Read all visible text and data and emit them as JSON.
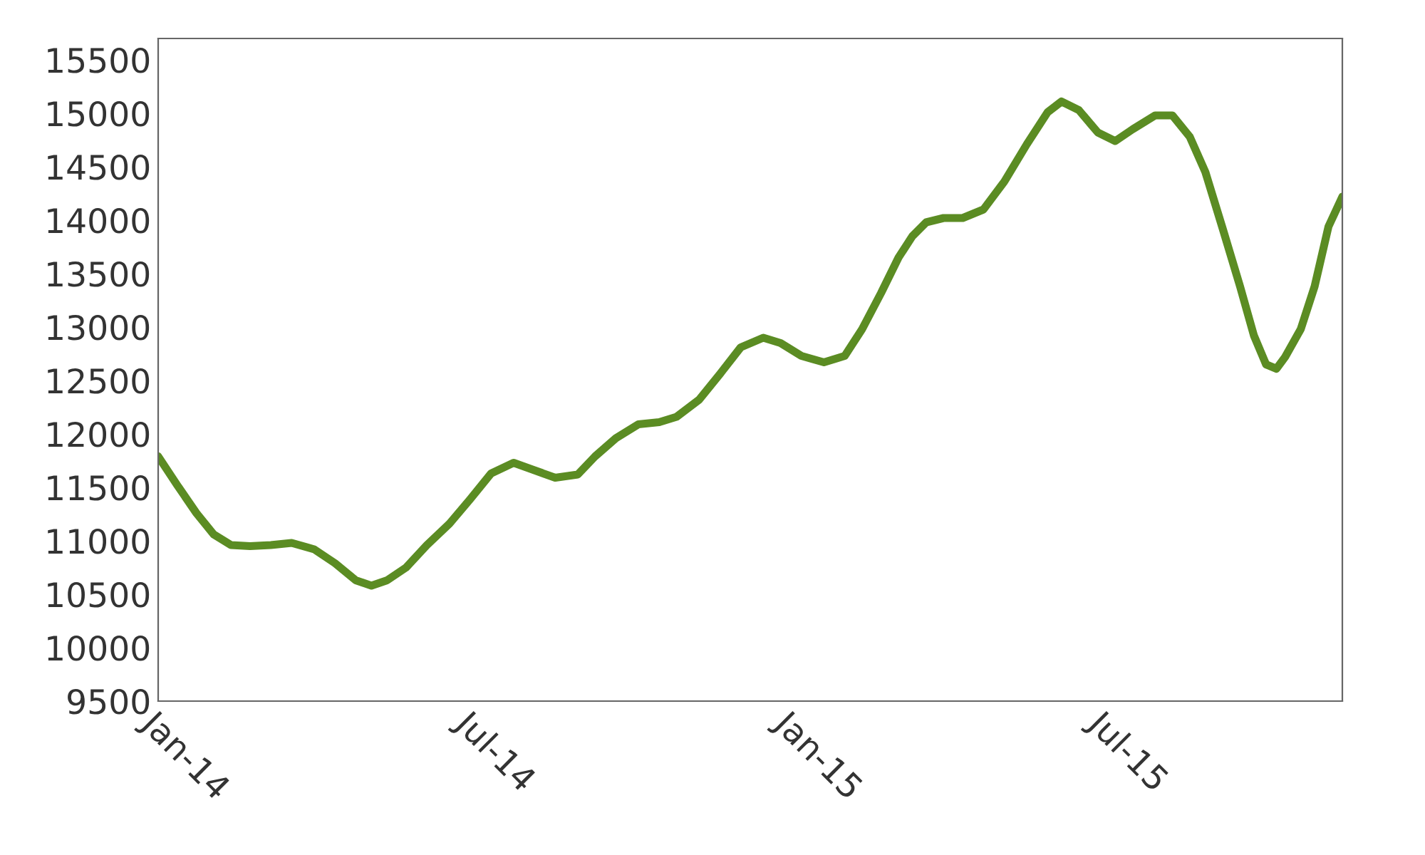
{
  "chart_data": {
    "type": "line",
    "x": [
      "2014-01-01",
      "2014-01-12",
      "2014-01-23",
      "2014-02-02",
      "2014-02-12",
      "2014-02-23",
      "2014-03-07",
      "2014-03-19",
      "2014-04-01",
      "2014-04-13",
      "2014-04-25",
      "2014-05-04",
      "2014-05-13",
      "2014-05-24",
      "2014-06-05",
      "2014-06-18",
      "2014-06-30",
      "2014-07-12",
      "2014-07-25",
      "2014-08-06",
      "2014-08-18",
      "2014-08-31",
      "2014-09-10",
      "2014-09-22",
      "2014-10-05",
      "2014-10-17",
      "2014-10-27",
      "2014-11-09",
      "2014-11-21",
      "2014-12-03",
      "2014-12-16",
      "2014-12-26",
      "2015-01-07",
      "2015-01-20",
      "2015-02-01",
      "2015-02-11",
      "2015-02-22",
      "2015-03-04",
      "2015-03-12",
      "2015-03-20",
      "2015-03-30",
      "2015-04-10",
      "2015-04-22",
      "2015-05-04",
      "2015-05-17",
      "2015-05-29",
      "2015-06-06",
      "2015-06-16",
      "2015-06-27",
      "2015-07-07",
      "2015-07-17",
      "2015-07-30",
      "2015-08-09",
      "2015-08-19",
      "2015-08-28",
      "2015-09-07",
      "2015-09-17",
      "2015-09-25",
      "2015-10-02",
      "2015-10-08",
      "2015-10-13",
      "2015-10-22",
      "2015-10-30",
      "2015-11-07",
      "2015-11-15"
    ],
    "series": [
      {
        "color": "#5b8c23",
        "values": [
          11790,
          11520,
          11260,
          11060,
          10960,
          10950,
          10960,
          10980,
          10920,
          10790,
          10630,
          10580,
          10630,
          10750,
          10960,
          11160,
          11390,
          11630,
          11730,
          11660,
          11590,
          11620,
          11790,
          11960,
          12090,
          12110,
          12160,
          12320,
          12560,
          12810,
          12900,
          12850,
          12730,
          12670,
          12730,
          12980,
          13320,
          13650,
          13850,
          13980,
          14020,
          14020,
          14100,
          14360,
          14710,
          15010,
          15110,
          15030,
          14820,
          14740,
          14850,
          14980,
          14980,
          14780,
          14450,
          13920,
          13380,
          12920,
          12650,
          12610,
          12720,
          12980,
          13380,
          13940,
          14220
        ]
      }
    ],
    "xlim": [
      "2014-01-01",
      "2015-11-15"
    ],
    "xticks": [
      {
        "value": "2014-01-01",
        "label": "Jan-14"
      },
      {
        "value": "2014-07-01",
        "label": "Jul-14"
      },
      {
        "value": "2015-01-01",
        "label": "Jan-15"
      },
      {
        "value": "2015-07-01",
        "label": "Jul-15"
      }
    ],
    "ylim": [
      9500,
      15700
    ],
    "yticks": [
      9500,
      10000,
      10500,
      11000,
      11500,
      12000,
      12500,
      13000,
      13500,
      14000,
      14500,
      15000,
      15500
    ],
    "grid": false,
    "marker": "none",
    "line_style": "solid"
  }
}
